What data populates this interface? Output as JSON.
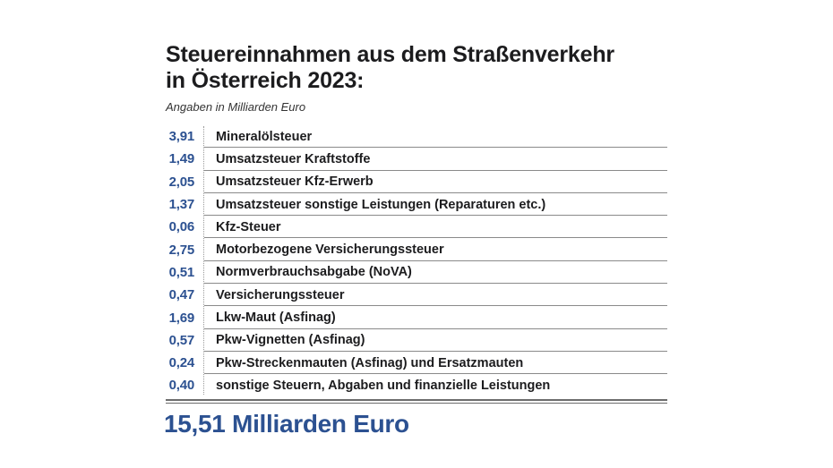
{
  "header": {
    "title_line1": "Steuereinnahmen aus dem Straßenverkehr",
    "title_line2": "in Österreich 2023:",
    "subtitle": "Angaben in Milliarden Euro"
  },
  "table": {
    "rows": [
      {
        "value": "3,91",
        "label": "Mineralölsteuer"
      },
      {
        "value": "1,49",
        "label": "Umsatzsteuer Kraftstoffe"
      },
      {
        "value": "2,05",
        "label": "Umsatzsteuer Kfz-Erwerb"
      },
      {
        "value": "1,37",
        "label": "Umsatzsteuer sonstige Leistungen (Reparaturen etc.)"
      },
      {
        "value": "0,06",
        "label": "Kfz-Steuer"
      },
      {
        "value": "2,75",
        "label": "Motorbezogene Versicherungssteuer"
      },
      {
        "value": "0,51",
        "label": "Normverbrauchsabgabe (NoVA)"
      },
      {
        "value": "0,47",
        "label": "Versicherungssteuer"
      },
      {
        "value": "1,69",
        "label": "Lkw-Maut (Asfinag)"
      },
      {
        "value": "0,57",
        "label": "Pkw-Vignetten (Asfinag)"
      },
      {
        "value": "0,24",
        "label": "Pkw-Streckenmauten (Asfinag) und Ersatzmauten"
      },
      {
        "value": "0,40",
        "label": "sonstige Steuern, Abgaben und finanzielle Leistungen"
      }
    ]
  },
  "total": {
    "label": "15,51 Milliarden Euro"
  },
  "colors": {
    "accent_blue": "#2c5191",
    "text_dark": "#1c1c1e",
    "separator": "#8a8a8a"
  }
}
